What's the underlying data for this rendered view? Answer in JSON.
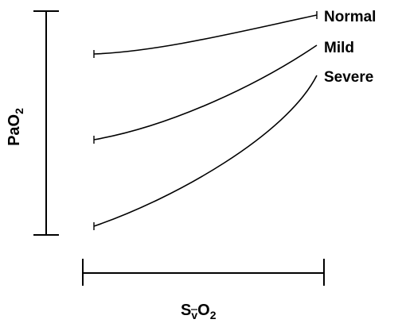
{
  "diagram": {
    "y_axis_label": {
      "main": "PaO",
      "subscript": "2"
    },
    "x_axis_label": {
      "main": "S",
      "subscript_v": "v",
      "main2": "O",
      "subscript": "2"
    },
    "series": [
      {
        "name": "Normal"
      },
      {
        "name": "Mild"
      },
      {
        "name": "Severe"
      }
    ]
  }
}
